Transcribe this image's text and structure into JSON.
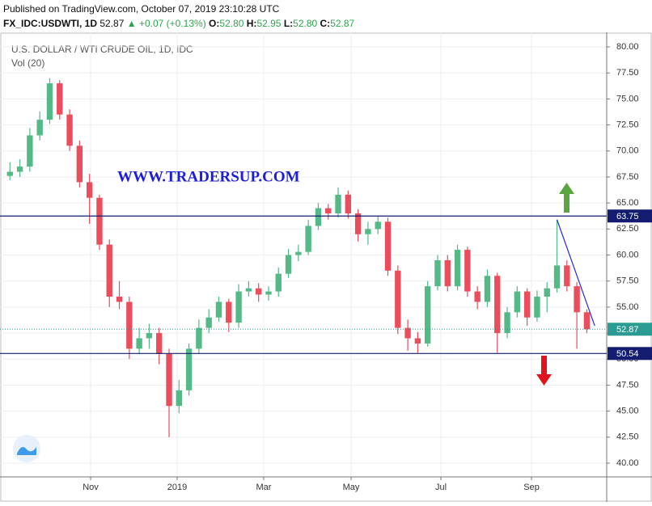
{
  "header": {
    "published": "Published on TradingView.com, October 07, 2019 23:10:28 UTC",
    "symbol": "FX_IDC:USDWTI, 1D",
    "last": "52.87",
    "arrow": "▲",
    "change": "+0.07 (+0.13%)",
    "ohlc": [
      {
        "label": "O:",
        "value": "52.80"
      },
      {
        "label": "H:",
        "value": "52.95"
      },
      {
        "label": "L:",
        "value": "52.80"
      },
      {
        "label": "C:",
        "value": "52.87"
      }
    ]
  },
  "chart_data": {
    "type": "candlestick",
    "title": "U.S. DOLLAR / WTI CRUDE OIL, 1D, IDC",
    "subtitle": "Vol (20)",
    "watermark": "WWW.TRADERSUP.COM",
    "up_color": "#53b987",
    "down_color": "#eb4d5c",
    "grid": true,
    "x": [
      1,
      2,
      3,
      4,
      5,
      6,
      7,
      8,
      9,
      10,
      11,
      12,
      13,
      14,
      15,
      16,
      17,
      18,
      19,
      20,
      21,
      22,
      23,
      24,
      25,
      26,
      27,
      28,
      29,
      30,
      31,
      32,
      33,
      34,
      35,
      36,
      37,
      38,
      39,
      40,
      41,
      42,
      43,
      44,
      45,
      46,
      47,
      48,
      49,
      50,
      51,
      52,
      53,
      54,
      55,
      56,
      57,
      58,
      59
    ],
    "open": [
      67.6,
      68.0,
      68.5,
      71.5,
      73.0,
      76.5,
      73.5,
      70.5,
      67.0,
      65.5,
      61.0,
      56.0,
      55.5,
      51.0,
      52.0,
      52.5,
      50.5,
      45.5,
      47.0,
      51.0,
      53.0,
      54.0,
      55.5,
      53.5,
      56.5,
      56.8,
      56.2,
      56.5,
      58.2,
      60.0,
      60.3,
      62.8,
      64.5,
      64.0,
      65.8,
      64.0,
      62.0,
      62.5,
      63.2,
      58.5,
      53.0,
      52.0,
      51.5,
      57.0,
      59.5,
      57.0,
      60.5,
      56.5,
      55.5,
      58.0,
      52.5,
      54.5,
      56.5,
      54.0,
      56.0,
      56.8,
      59.0,
      57.0,
      54.5
    ],
    "high": [
      68.9,
      69.2,
      72.2,
      73.8,
      77.0,
      76.8,
      74.0,
      71.0,
      67.8,
      65.8,
      61.5,
      57.5,
      56.0,
      53.0,
      53.4,
      53.0,
      51.0,
      48.0,
      51.5,
      53.8,
      54.8,
      56.0,
      55.8,
      57.2,
      57.5,
      57.3,
      57.0,
      58.8,
      60.6,
      61.0,
      63.4,
      65.0,
      64.9,
      66.5,
      66.2,
      64.4,
      63.2,
      63.8,
      63.6,
      59.0,
      53.8,
      52.6,
      57.5,
      60.0,
      60.0,
      61.0,
      60.8,
      57.0,
      58.6,
      58.3,
      55.0,
      57.0,
      56.8,
      56.6,
      57.4,
      63.4,
      59.5,
      57.4,
      54.8
    ],
    "low": [
      67.2,
      67.5,
      68.0,
      71.0,
      72.6,
      73.0,
      70.0,
      66.5,
      63.0,
      60.5,
      55.0,
      54.8,
      50.0,
      50.5,
      51.0,
      49.5,
      42.5,
      44.8,
      46.5,
      50.5,
      52.5,
      53.6,
      52.6,
      53.0,
      56.0,
      55.5,
      55.6,
      56.0,
      57.8,
      59.4,
      60.0,
      62.4,
      63.4,
      63.6,
      63.5,
      61.3,
      61.0,
      62.0,
      58.0,
      52.4,
      50.8,
      50.6,
      51.2,
      56.6,
      56.5,
      56.6,
      56.0,
      54.8,
      55.0,
      50.6,
      52.0,
      54.0,
      53.2,
      53.6,
      54.5,
      56.4,
      56.5,
      51.0,
      52.5
    ],
    "close": [
      68.0,
      68.5,
      71.5,
      73.0,
      76.5,
      73.5,
      70.5,
      67.0,
      65.5,
      61.0,
      56.0,
      55.5,
      51.0,
      52.0,
      52.5,
      50.5,
      45.5,
      47.0,
      51.0,
      53.0,
      54.0,
      55.5,
      53.5,
      56.5,
      56.8,
      56.2,
      56.5,
      58.2,
      60.0,
      60.3,
      62.8,
      64.5,
      64.0,
      65.8,
      64.0,
      62.0,
      62.5,
      63.2,
      58.5,
      53.0,
      52.0,
      51.5,
      57.0,
      59.5,
      57.0,
      60.5,
      56.5,
      55.5,
      58.0,
      52.5,
      54.5,
      56.5,
      54.0,
      56.0,
      56.8,
      59.0,
      57.0,
      54.5,
      52.87
    ],
    "xlim": [
      0,
      61
    ],
    "ylim": [
      38.68,
      81.4
    ],
    "xticks": [
      {
        "value": 9.11,
        "label": "Nov"
      },
      {
        "value": 17.81,
        "label": "2019"
      },
      {
        "value": 26.51,
        "label": "Mar"
      },
      {
        "value": 35.3,
        "label": "May"
      },
      {
        "value": 44.33,
        "label": "Jul"
      },
      {
        "value": 53.44,
        "label": "Sep"
      }
    ],
    "yticks": [
      {
        "value": 40,
        "label": "40.00"
      },
      {
        "value": 42.5,
        "label": "42.50"
      },
      {
        "value": 45,
        "label": "45.00"
      },
      {
        "value": 47.5,
        "label": "47.50"
      },
      {
        "value": 50,
        "label": "50.00"
      },
      {
        "value": 52.5,
        "label": "52.50"
      },
      {
        "value": 55,
        "label": "55.00"
      },
      {
        "value": 57.5,
        "label": "57.50"
      },
      {
        "value": 60,
        "label": "60.00"
      },
      {
        "value": 62.5,
        "label": "62.50"
      },
      {
        "value": 65,
        "label": "65.00"
      },
      {
        "value": 67.5,
        "label": "67.50"
      },
      {
        "value": 70,
        "label": "70.00"
      },
      {
        "value": 72.5,
        "label": "72.50"
      },
      {
        "value": 75,
        "label": "75.00"
      },
      {
        "value": 77.5,
        "label": "77.50"
      },
      {
        "value": 80,
        "label": "80.00"
      }
    ],
    "levels": [
      {
        "value": 63.75,
        "color": "#131c70"
      },
      {
        "value": 50.54,
        "color": "#131c70"
      }
    ],
    "last_price": {
      "value": 52.87,
      "color": "#2a9b93"
    },
    "trendline": {
      "x": [
        56,
        59.8
      ],
      "y": [
        63.4,
        53.2
      ],
      "color": "#2b2bd6"
    }
  }
}
